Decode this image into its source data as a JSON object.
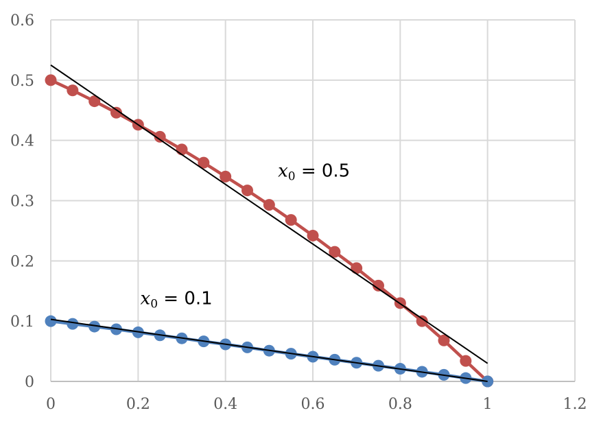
{
  "chart_data": {
    "type": "line",
    "title": "",
    "xlabel": "",
    "ylabel": "",
    "xlim": [
      0,
      1.2
    ],
    "ylim": [
      0,
      0.6
    ],
    "x_ticks": [
      0,
      0.2,
      0.4,
      0.6,
      0.8,
      1,
      1.2
    ],
    "x_tick_labels": [
      "0",
      "0.2",
      "0.4",
      "0.6",
      "0.8",
      "1",
      "1.2"
    ],
    "y_ticks": [
      0,
      0.1,
      0.2,
      0.3,
      0.4,
      0.5,
      0.6
    ],
    "y_tick_labels": [
      "0",
      "0.1",
      "0.2",
      "0.3",
      "0.4",
      "0.5",
      "0.6"
    ],
    "grid": true,
    "series": [
      {
        "color": "#C0504D",
        "x": [
          0,
          0.05,
          0.1,
          0.15,
          0.2,
          0.25,
          0.3,
          0.35,
          0.4,
          0.45,
          0.5,
          0.55,
          0.6,
          0.65,
          0.7,
          0.75,
          0.8,
          0.85,
          0.9,
          0.95,
          1
        ],
        "y": [
          0.5,
          0.483,
          0.465,
          0.446,
          0.426,
          0.406,
          0.385,
          0.363,
          0.34,
          0.317,
          0.293,
          0.268,
          0.242,
          0.215,
          0.188,
          0.159,
          0.13,
          0.1,
          0.068,
          0.034,
          0
        ]
      },
      {
        "color": "#4F81BD",
        "x": [
          0,
          0.05,
          0.1,
          0.15,
          0.2,
          0.25,
          0.3,
          0.35,
          0.4,
          0.45,
          0.5,
          0.55,
          0.6,
          0.65,
          0.7,
          0.75,
          0.8,
          0.85,
          0.9,
          0.95,
          1
        ],
        "y": [
          0.1,
          0.0955,
          0.091,
          0.0865,
          0.0815,
          0.0765,
          0.0715,
          0.0665,
          0.0615,
          0.0565,
          0.051,
          0.046,
          0.041,
          0.036,
          0.031,
          0.026,
          0.021,
          0.016,
          0.011,
          0.0055,
          0
        ]
      }
    ],
    "fit_lines": [
      {
        "color": "#000000",
        "x": [
          0,
          1
        ],
        "y": [
          0.525,
          0.03
        ]
      },
      {
        "color": "#000000",
        "x": [
          0,
          1
        ],
        "y": [
          0.103,
          0.0
        ]
      }
    ],
    "annotations": [
      {
        "var": "x",
        "sub": "0",
        "text": " = 0.5",
        "x": 0.52,
        "y": 0.34
      },
      {
        "var": "x",
        "sub": "0",
        "text": " = 0.1",
        "x": 0.205,
        "y": 0.128
      }
    ]
  }
}
